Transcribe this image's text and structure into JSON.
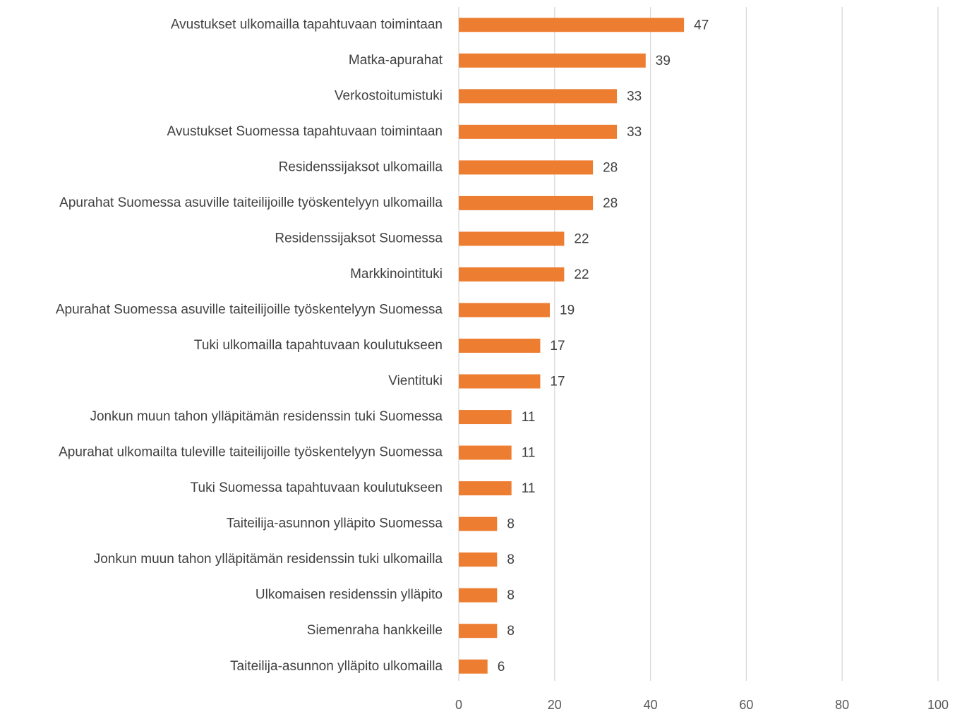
{
  "chart_data": {
    "type": "bar",
    "orientation": "horizontal",
    "categories": [
      "Avustukset ulkomailla tapahtuvaan toimintaan",
      "Matka-apurahat",
      "Verkostoitumistuki",
      "Avustukset Suomessa tapahtuvaan toimintaan",
      "Residenssijaksot ulkomailla",
      "Apurahat Suomessa asuville taiteilijoille työskentelyyn ulkomailla",
      "Residenssijaksot Suomessa",
      "Markkinointituki",
      "Apurahat Suomessa asuville taiteilijoille työskentelyyn Suomessa",
      "Tuki ulkomailla tapahtuvaan koulutukseen",
      "Vientituki",
      "Jonkun muun tahon ylläpitämän residenssin tuki Suomessa",
      "Apurahat ulkomailta tuleville taiteilijoille työskentelyyn Suomessa",
      "Tuki Suomessa tapahtuvaan koulutukseen",
      "Taiteilija-asunnon ylläpito Suomessa",
      "Jonkun muun tahon ylläpitämän residenssin tuki ulkomailla",
      "Ulkomaisen residenssin ylläpito",
      "Siemenraha hankkeille",
      "Taiteilija-asunnon ylläpito ulkomailla"
    ],
    "values": [
      47,
      39,
      33,
      33,
      28,
      28,
      22,
      22,
      19,
      17,
      17,
      11,
      11,
      11,
      8,
      8,
      8,
      8,
      6
    ],
    "color": "#ed7d31",
    "xlim": [
      0,
      100
    ],
    "xticks": [
      0,
      20,
      40,
      60,
      80,
      100
    ],
    "grid": true
  }
}
